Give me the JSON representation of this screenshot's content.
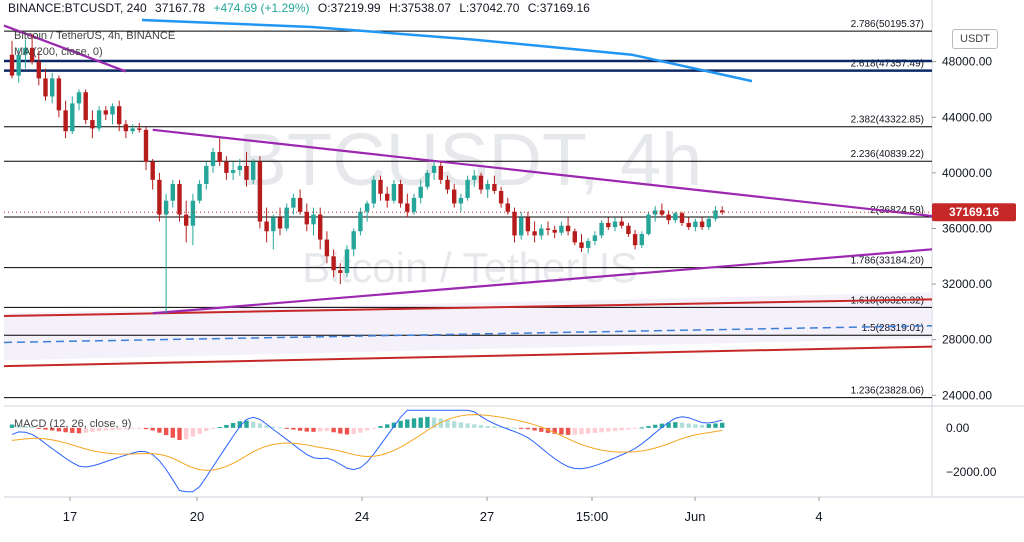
{
  "header": {
    "symbol": "BINANCE:BTCUSDT, 240",
    "last": "37167.78",
    "change": "+474.69 (+1.29%)",
    "open": "O:37219.99",
    "high": "H:37538.07",
    "low": "L:37042.70",
    "close": "C:37169.16"
  },
  "subheader": "Bitcoin / TetherUS, 4h, BINANCE",
  "ma_label": "MA (200, close, 0)",
  "watermark": {
    "ticker": "BTCUSDT, 4h",
    "name": "Bitcoin / TetherUS"
  },
  "unit_button": "USDT",
  "macd_label": "MACD (12, 26, close, 9)",
  "colors": {
    "up": "#26a69a",
    "down": "#b71c1c",
    "fib": "#000000",
    "trend": "#9c27b0",
    "ma": "#2196f3",
    "support": "#c62828",
    "price_tag": "#c62828"
  },
  "chart_data": {
    "type": "candlestick",
    "price_axis": {
      "ticks": [
        24000,
        28000,
        32000,
        36000,
        40000,
        44000,
        48000
      ],
      "tick_labels": [
        "24000.00",
        "28000.00",
        "32000.00",
        "36000.00",
        "40000.00",
        "44000.00",
        "48000.00"
      ],
      "range": [
        23300,
        51000
      ]
    },
    "x_axis": {
      "ticks": [
        "17",
        "20",
        "24",
        "27",
        "15:00",
        "Jun",
        "4"
      ]
    },
    "current_price": {
      "value": 37169.16,
      "label": "37169.16"
    },
    "fib_levels": [
      {
        "ratio": "2.786",
        "price": 50195.37,
        "label": "2.786(50195.37)"
      },
      {
        "ratio": "2.618",
        "price": 47357.49,
        "label": "2.618(47357.49)"
      },
      {
        "ratio": "2.382",
        "price": 43322.85,
        "label": "2.382(43322.85)"
      },
      {
        "ratio": "2.236",
        "price": 40839.22,
        "label": "2.236(40839.22)"
      },
      {
        "ratio": "2",
        "price": 36824.59,
        "label": "2(36824.59)"
      },
      {
        "ratio": "1.786",
        "price": 33184.2,
        "label": "1.786(33184.20)"
      },
      {
        "ratio": "1.618",
        "price": 30326.32,
        "label": "1.618(30326.32)"
      },
      {
        "ratio": "1.5",
        "price": 28319.01,
        "label": "1.5(28319.01)"
      },
      {
        "ratio": "1.236",
        "price": 23828.06,
        "label": "1.236(23828.06)"
      }
    ],
    "candles": [
      [
        48500,
        49500,
        46800,
        47000
      ],
      [
        47000,
        49000,
        46500,
        48500
      ],
      [
        48500,
        49600,
        47500,
        49000
      ],
      [
        49000,
        50000,
        47800,
        48000
      ],
      [
        48000,
        48800,
        46300,
        46800
      ],
      [
        46800,
        47500,
        45200,
        45500
      ],
      [
        45500,
        47200,
        45000,
        46800
      ],
      [
        46800,
        47000,
        44000,
        44500
      ],
      [
        44500,
        45200,
        42500,
        43000
      ],
      [
        43000,
        45500,
        42800,
        45000
      ],
      [
        45000,
        46000,
        44500,
        45800
      ],
      [
        45800,
        46000,
        43500,
        43800
      ],
      [
        43800,
        44500,
        42500,
        43200
      ],
      [
        43200,
        44800,
        43000,
        44500
      ],
      [
        44500,
        44800,
        43800,
        44200
      ],
      [
        44200,
        45000,
        43500,
        44800
      ],
      [
        44800,
        45200,
        43000,
        43500
      ],
      [
        43500,
        43800,
        42500,
        43000
      ],
      [
        43000,
        43500,
        42800,
        43200
      ],
      [
        43200,
        43600,
        42900,
        43100
      ],
      [
        43100,
        43300,
        40200,
        40800
      ],
      [
        40800,
        41000,
        38800,
        39500
      ],
      [
        39500,
        40000,
        36500,
        37000
      ],
      [
        37000,
        38500,
        29900,
        38000
      ],
      [
        38000,
        39500,
        37500,
        39200
      ],
      [
        39200,
        39500,
        36500,
        37000
      ],
      [
        37000,
        38000,
        35000,
        36200
      ],
      [
        36200,
        38500,
        34800,
        38000
      ],
      [
        38000,
        39500,
        37800,
        39200
      ],
      [
        39200,
        40800,
        38800,
        40500
      ],
      [
        40500,
        41800,
        40000,
        41500
      ],
      [
        41500,
        42500,
        40500,
        40800
      ],
      [
        40800,
        41200,
        39500,
        40000
      ],
      [
        40000,
        40800,
        39500,
        40200
      ],
      [
        40200,
        41000,
        39800,
        40500
      ],
      [
        40500,
        41500,
        39000,
        39500
      ],
      [
        39500,
        41000,
        39200,
        40800
      ],
      [
        40800,
        41200,
        36000,
        36500
      ],
      [
        36500,
        37500,
        35000,
        35800
      ],
      [
        35800,
        37000,
        34500,
        36800
      ],
      [
        36800,
        37500,
        35500,
        36000
      ],
      [
        36000,
        37800,
        35800,
        37500
      ],
      [
        37500,
        38500,
        37000,
        38200
      ],
      [
        38200,
        38800,
        37000,
        37200
      ],
      [
        37200,
        37800,
        35800,
        36300
      ],
      [
        36300,
        37500,
        35500,
        37000
      ],
      [
        37000,
        37500,
        34500,
        35200
      ],
      [
        35200,
        35800,
        33500,
        34000
      ],
      [
        34000,
        34500,
        32500,
        33000
      ],
      [
        33000,
        33500,
        32000,
        32800
      ],
      [
        32800,
        34800,
        32500,
        34500
      ],
      [
        34500,
        36000,
        34000,
        35800
      ],
      [
        35800,
        37500,
        35500,
        37200
      ],
      [
        37200,
        38000,
        36500,
        37800
      ],
      [
        37800,
        39800,
        37500,
        39500
      ],
      [
        39500,
        39800,
        38000,
        38500
      ],
      [
        38500,
        39000,
        37500,
        38000
      ],
      [
        38000,
        39500,
        37800,
        39200
      ],
      [
        39200,
        39500,
        37500,
        37800
      ],
      [
        37800,
        38500,
        36800,
        37200
      ],
      [
        37200,
        38500,
        37000,
        38200
      ],
      [
        38200,
        39500,
        37800,
        39000
      ],
      [
        39000,
        40200,
        38800,
        40000
      ],
      [
        40000,
        40800,
        39500,
        40500
      ],
      [
        40500,
        40800,
        39200,
        39500
      ],
      [
        39500,
        39800,
        38500,
        38800
      ],
      [
        38800,
        39200,
        37500,
        37800
      ],
      [
        37800,
        38500,
        37200,
        38200
      ],
      [
        38200,
        39800,
        38000,
        39500
      ],
      [
        39500,
        40200,
        39000,
        39800
      ],
      [
        39800,
        40000,
        38500,
        38800
      ],
      [
        38800,
        39500,
        38200,
        39200
      ],
      [
        39200,
        39800,
        38500,
        38700
      ],
      [
        38700,
        39000,
        37500,
        37800
      ],
      [
        37800,
        38200,
        37000,
        37200
      ],
      [
        37200,
        37500,
        35000,
        35500
      ],
      [
        35500,
        37200,
        35200,
        36800
      ],
      [
        36800,
        37200,
        35500,
        35800
      ],
      [
        35800,
        36500,
        35000,
        35500
      ],
      [
        35500,
        36300,
        35200,
        36000
      ],
      [
        36000,
        36500,
        35500,
        35900
      ],
      [
        35900,
        36200,
        35300,
        35700
      ],
      [
        35700,
        36500,
        35500,
        36200
      ],
      [
        36200,
        36800,
        35500,
        35800
      ],
      [
        35800,
        36000,
        34800,
        35000
      ],
      [
        35000,
        35600,
        34300,
        34600
      ],
      [
        34600,
        35300,
        34200,
        35100
      ],
      [
        35100,
        35800,
        34800,
        35500
      ],
      [
        35500,
        36600,
        35300,
        36400
      ],
      [
        36400,
        36800,
        35900,
        36100
      ],
      [
        36100,
        36800,
        35800,
        36500
      ],
      [
        36500,
        36800,
        36000,
        36200
      ],
      [
        36200,
        36400,
        35400,
        35600
      ],
      [
        35600,
        35900,
        34500,
        34800
      ],
      [
        34800,
        35800,
        34600,
        35600
      ],
      [
        35600,
        37200,
        35500,
        37000
      ],
      [
        37000,
        37600,
        36500,
        37300
      ],
      [
        37300,
        37800,
        36800,
        37000
      ],
      [
        37000,
        37300,
        36300,
        36600
      ],
      [
        36600,
        37200,
        36400,
        37100
      ],
      [
        37100,
        37200,
        36200,
        36400
      ],
      [
        36400,
        36800,
        35900,
        36100
      ],
      [
        36100,
        36700,
        35800,
        36500
      ],
      [
        36500,
        36800,
        35900,
        36100
      ],
      [
        36100,
        36900,
        35900,
        36700
      ],
      [
        36700,
        37600,
        36500,
        37300
      ],
      [
        37300,
        37600,
        37000,
        37169
      ]
    ],
    "macd_axis": {
      "ticks": [
        0,
        -2000
      ],
      "tick_labels": [
        "0.00",
        "−2000.00"
      ],
      "range": [
        -3000,
        900
      ]
    },
    "macd_histogram": [
      150,
      120,
      80,
      40,
      -20,
      -80,
      -120,
      -160,
      -200,
      -230,
      -250,
      -220,
      -180,
      -150,
      -120,
      -100,
      -80,
      -60,
      -40,
      -30,
      -60,
      -120,
      -220,
      -330,
      -450,
      -550,
      -520,
      -400,
      -280,
      -150,
      -50,
      40,
      130,
      220,
      300,
      330,
      280,
      200,
      120,
      60,
      20,
      -30,
      -80,
      -130,
      -170,
      -180,
      -160,
      -140,
      -200,
      -260,
      -300,
      -280,
      -220,
      -120,
      -20,
      80,
      160,
      240,
      320,
      380,
      430,
      470,
      500,
      470,
      420,
      360,
      300,
      250,
      200,
      160,
      120,
      90,
      70,
      50,
      30,
      10,
      -20,
      -60,
      -120,
      -180,
      -230,
      -270,
      -300,
      -320,
      -310,
      -290,
      -260,
      -230,
      -200,
      -170,
      -140,
      -110,
      -80,
      -40,
      20,
      80,
      140,
      190,
      230,
      260,
      240,
      200,
      160,
      140,
      170,
      200,
      230
    ]
  }
}
